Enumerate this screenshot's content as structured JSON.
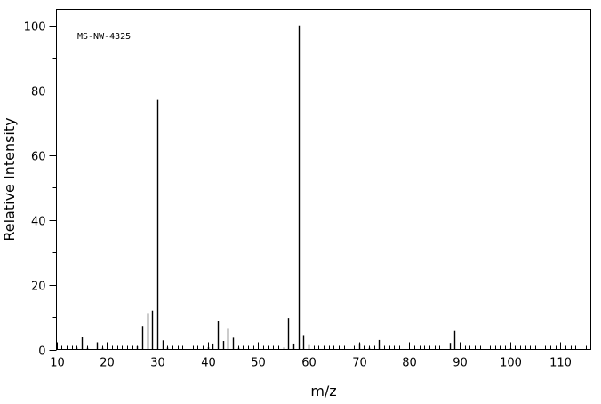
{
  "chart_data": {
    "type": "bar",
    "title": "",
    "annotation": "MS-NW-4325",
    "xlabel": "m/z",
    "ylabel": "Relative Intensity",
    "xlim": [
      10,
      116
    ],
    "ylim": [
      0,
      105
    ],
    "x_major_ticks": [
      10,
      20,
      30,
      40,
      50,
      60,
      70,
      80,
      90,
      100,
      110
    ],
    "x_minor_step": 1,
    "y_major_ticks": [
      0,
      20,
      40,
      60,
      80,
      100
    ],
    "y_minor_step": 10,
    "grid": false,
    "peaks": [
      {
        "mz": 14,
        "intensity": 0.6
      },
      {
        "mz": 15,
        "intensity": 3.7
      },
      {
        "mz": 16,
        "intensity": 0.5
      },
      {
        "mz": 18,
        "intensity": 2.2
      },
      {
        "mz": 19,
        "intensity": 0.5
      },
      {
        "mz": 26,
        "intensity": 1.0
      },
      {
        "mz": 27,
        "intensity": 7.2
      },
      {
        "mz": 28,
        "intensity": 11.0
      },
      {
        "mz": 29,
        "intensity": 12.0
      },
      {
        "mz": 30,
        "intensity": 77.0
      },
      {
        "mz": 31,
        "intensity": 2.8
      },
      {
        "mz": 32,
        "intensity": 0.6
      },
      {
        "mz": 40,
        "intensity": 0.7
      },
      {
        "mz": 41,
        "intensity": 1.8
      },
      {
        "mz": 42,
        "intensity": 8.8
      },
      {
        "mz": 43,
        "intensity": 2.6
      },
      {
        "mz": 44,
        "intensity": 6.6
      },
      {
        "mz": 45,
        "intensity": 3.6
      },
      {
        "mz": 46,
        "intensity": 0.5
      },
      {
        "mz": 55,
        "intensity": 0.6
      },
      {
        "mz": 56,
        "intensity": 9.7
      },
      {
        "mz": 57,
        "intensity": 1.8
      },
      {
        "mz": 58,
        "intensity": 100.0
      },
      {
        "mz": 59,
        "intensity": 4.4
      },
      {
        "mz": 60,
        "intensity": 1.6
      },
      {
        "mz": 70,
        "intensity": 1.9
      },
      {
        "mz": 72,
        "intensity": 0.5
      },
      {
        "mz": 74,
        "intensity": 2.9
      },
      {
        "mz": 88,
        "intensity": 2.0
      },
      {
        "mz": 89,
        "intensity": 5.7
      },
      {
        "mz": 100,
        "intensity": 0.4
      }
    ]
  }
}
